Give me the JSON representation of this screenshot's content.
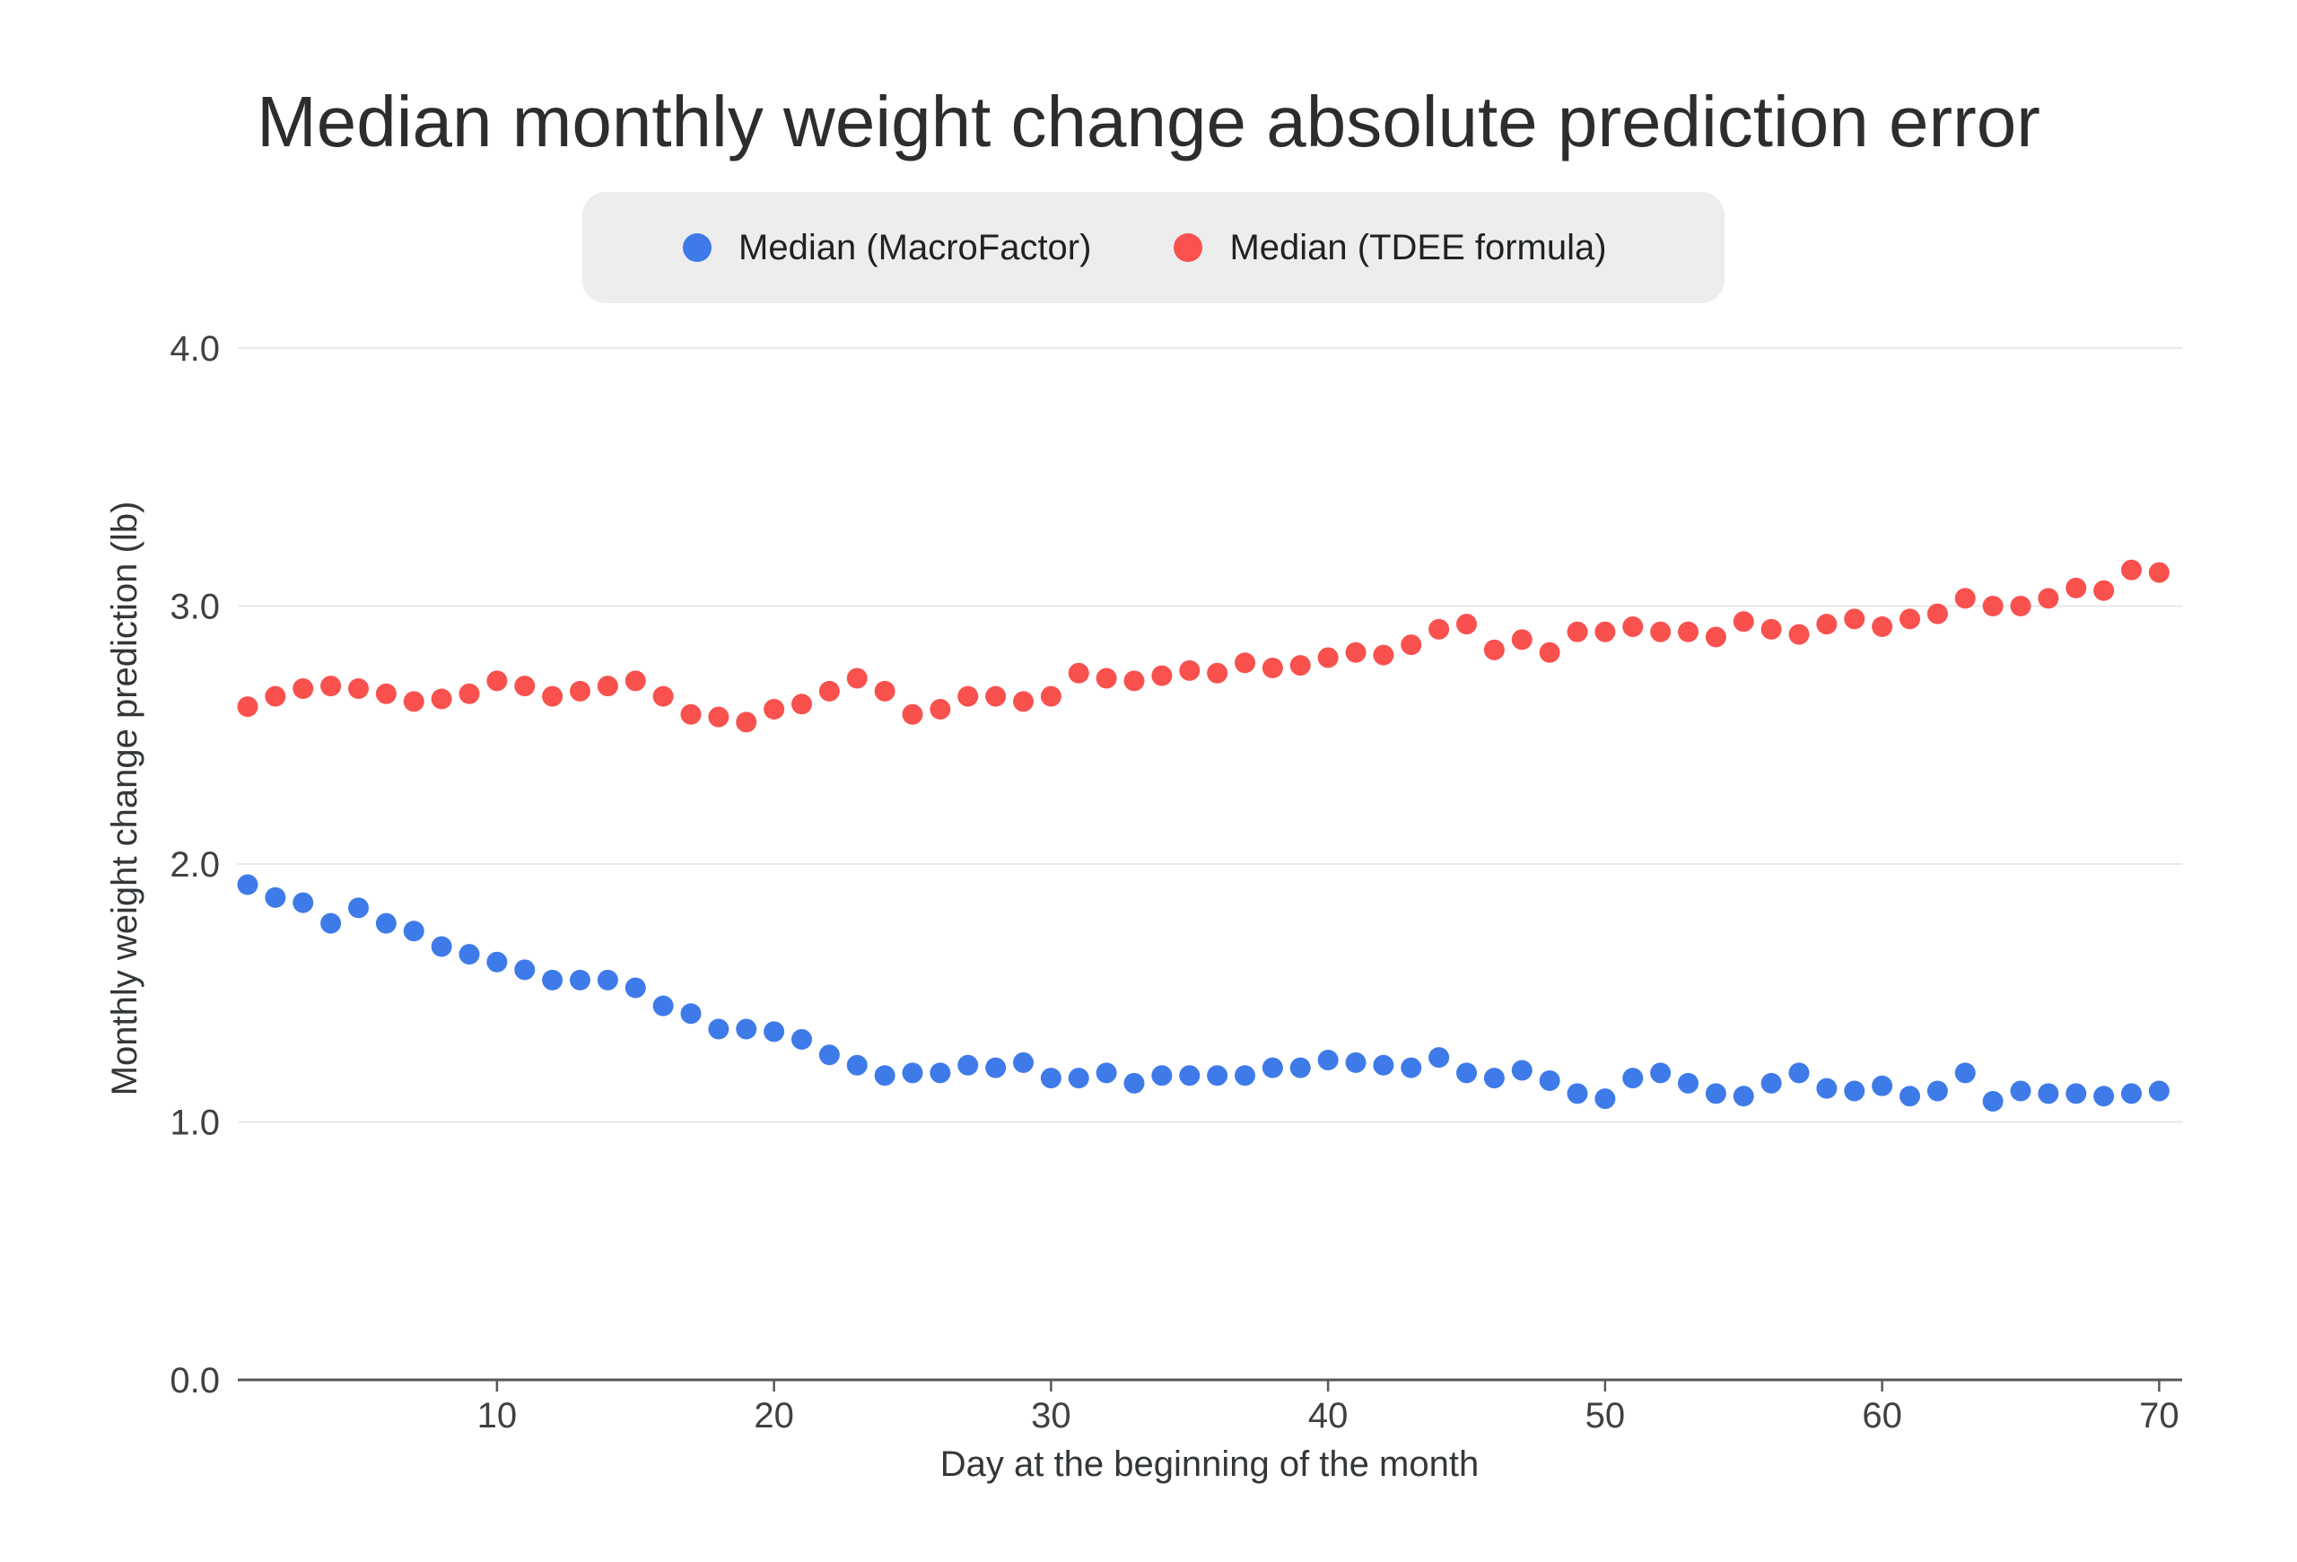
{
  "page": {
    "background": "#ffffff"
  },
  "chart": {
    "title": "Median monthly weight change absolute prediction error"
  },
  "chart_data": {
    "type": "scatter",
    "title": "Median monthly weight change absolute prediction error",
    "xlabel": "Day at the beginning of the month",
    "ylabel": "Monthly weight change prediction (lb)",
    "xlim": [
      0.6,
      70.8
    ],
    "ylim": [
      0.0,
      4.0
    ],
    "grid": true,
    "legend_position": "top-center",
    "x_ticks": [
      "10",
      "20",
      "30",
      "40",
      "50",
      "60",
      "70"
    ],
    "x_tick_values": [
      10,
      20,
      30,
      40,
      50,
      60,
      70
    ],
    "y_ticks": [
      "0.0",
      "1.0",
      "2.0",
      "3.0",
      "4.0"
    ],
    "y_tick_values": [
      0,
      1,
      2,
      3,
      4
    ],
    "x": [
      1,
      2,
      3,
      4,
      5,
      6,
      7,
      8,
      9,
      10,
      11,
      12,
      13,
      14,
      15,
      16,
      17,
      18,
      19,
      20,
      21,
      22,
      23,
      24,
      25,
      26,
      27,
      28,
      29,
      30,
      31,
      32,
      33,
      34,
      35,
      36,
      37,
      38,
      39,
      40,
      41,
      42,
      43,
      44,
      45,
      46,
      47,
      48,
      49,
      50,
      51,
      52,
      53,
      54,
      55,
      56,
      57,
      58,
      59,
      60,
      61,
      62,
      63,
      64,
      65,
      66,
      67,
      68,
      69,
      70
    ],
    "series": [
      {
        "name": "Median (MacroFactor)",
        "color": "#3E7BE9",
        "values": [
          1.92,
          1.87,
          1.85,
          1.77,
          1.83,
          1.77,
          1.74,
          1.68,
          1.65,
          1.62,
          1.59,
          1.55,
          1.55,
          1.55,
          1.52,
          1.45,
          1.42,
          1.36,
          1.36,
          1.35,
          1.32,
          1.26,
          1.22,
          1.18,
          1.19,
          1.19,
          1.22,
          1.21,
          1.23,
          1.17,
          1.17,
          1.19,
          1.15,
          1.18,
          1.18,
          1.18,
          1.18,
          1.21,
          1.21,
          1.24,
          1.23,
          1.22,
          1.21,
          1.25,
          1.19,
          1.17,
          1.2,
          1.16,
          1.11,
          1.09,
          1.17,
          1.19,
          1.15,
          1.11,
          1.1,
          1.15,
          1.19,
          1.13,
          1.12,
          1.14,
          1.1,
          1.12,
          1.19,
          1.08,
          1.12,
          1.11,
          1.11,
          1.1,
          1.11,
          1.12
        ]
      },
      {
        "name": "Median (TDEE formula)",
        "color": "#F8514E",
        "values": [
          2.61,
          2.65,
          2.68,
          2.69,
          2.68,
          2.66,
          2.63,
          2.64,
          2.66,
          2.71,
          2.69,
          2.65,
          2.67,
          2.69,
          2.71,
          2.65,
          2.58,
          2.57,
          2.55,
          2.6,
          2.62,
          2.67,
          2.72,
          2.67,
          2.58,
          2.6,
          2.65,
          2.65,
          2.63,
          2.65,
          2.74,
          2.72,
          2.71,
          2.73,
          2.75,
          2.74,
          2.78,
          2.76,
          2.77,
          2.8,
          2.82,
          2.81,
          2.85,
          2.91,
          2.93,
          2.83,
          2.87,
          2.82,
          2.9,
          2.9,
          2.92,
          2.9,
          2.9,
          2.88,
          2.94,
          2.91,
          2.89,
          2.93,
          2.95,
          2.92,
          2.95,
          2.97,
          3.03,
          3.0,
          3.0,
          3.03,
          3.07,
          3.06,
          3.14,
          3.13
        ]
      }
    ],
    "style": {
      "marker_radius": 11.5,
      "grid_color": "#e8e8e8",
      "axis_color": "#55575b",
      "tick_text_color": "#3e4144",
      "axis_title_color": "#33373a",
      "legend_bg": "#ededee"
    }
  }
}
